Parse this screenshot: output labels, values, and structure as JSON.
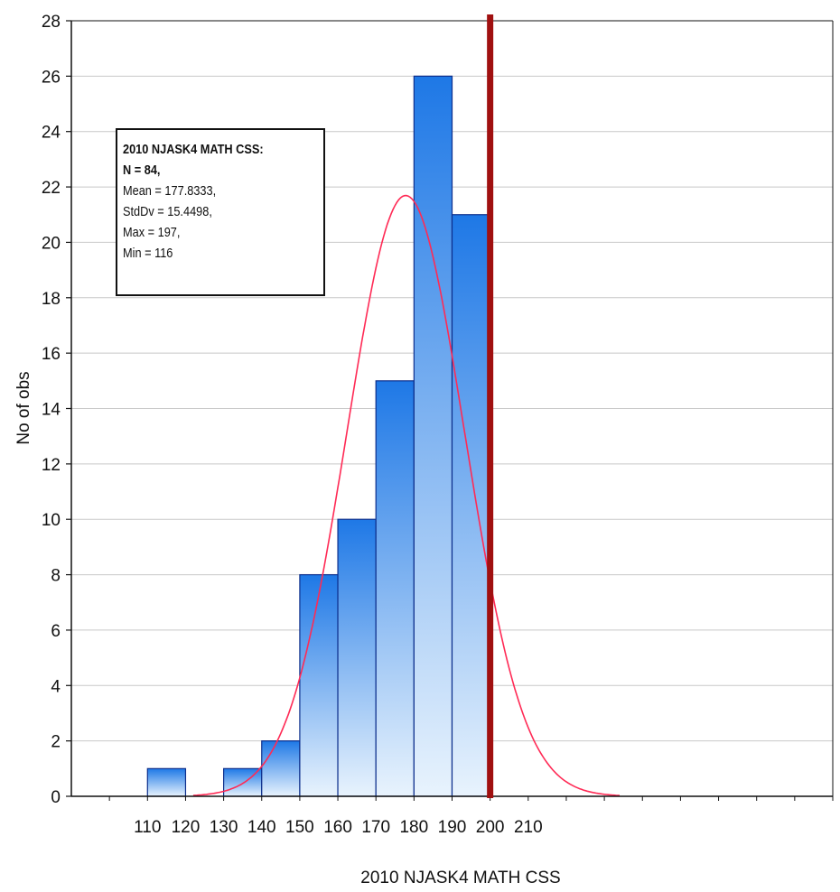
{
  "chart_data": {
    "type": "bar",
    "title": "",
    "xlabel": "2010 NJASK4 MATH CSS",
    "ylabel": "No of obs",
    "xlim": [
      90,
      290
    ],
    "ylim": [
      0,
      28
    ],
    "x_ticks": [
      110,
      120,
      130,
      140,
      150,
      160,
      170,
      180,
      190,
      200,
      210
    ],
    "y_ticks": [
      0,
      2,
      4,
      6,
      8,
      10,
      12,
      14,
      16,
      18,
      20,
      22,
      24,
      26,
      28
    ],
    "bins": [
      {
        "start": 110,
        "end": 120,
        "count": 1
      },
      {
        "start": 120,
        "end": 130,
        "count": 0
      },
      {
        "start": 130,
        "end": 140,
        "count": 1
      },
      {
        "start": 140,
        "end": 150,
        "count": 2
      },
      {
        "start": 150,
        "end": 160,
        "count": 8
      },
      {
        "start": 160,
        "end": 170,
        "count": 10
      },
      {
        "start": 170,
        "end": 180,
        "count": 15
      },
      {
        "start": 180,
        "end": 190,
        "count": 26
      },
      {
        "start": 190,
        "end": 200,
        "count": 21
      }
    ],
    "normal_curve": {
      "mean": 177.8333,
      "sd": 15.4498,
      "n": 84,
      "bin_width": 10,
      "color": "#ff2a55"
    },
    "reference_line": {
      "x": 200,
      "color": "#a01010"
    },
    "bar_color_top": "#1e78e6",
    "bar_color_bottom": "#e8f3fd",
    "grid": true,
    "legend": {
      "title": "2010 NJASK4 MATH CSS:",
      "lines": [
        "N = 84,",
        "Mean = 177.8333,",
        "StdDv = 15.4498,",
        "Max = 197,",
        "Min = 116"
      ]
    }
  }
}
